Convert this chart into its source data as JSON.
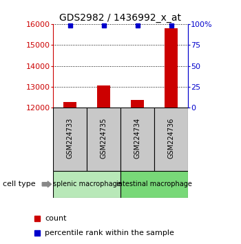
{
  "title": "GDS2982 / 1436992_x_at",
  "samples": [
    "GSM224733",
    "GSM224735",
    "GSM224734",
    "GSM224736"
  ],
  "counts": [
    12250,
    13050,
    12350,
    15800
  ],
  "percentile_ranks": [
    99,
    99,
    99,
    99
  ],
  "ylim": [
    12000,
    16000
  ],
  "yticks": [
    12000,
    13000,
    14000,
    15000,
    16000
  ],
  "right_yticks": [
    0,
    25,
    50,
    75,
    100
  ],
  "right_ylim": [
    0,
    100
  ],
  "groups": [
    {
      "label": "splenic macrophage",
      "samples": [
        0,
        1
      ],
      "color": "#b8e8b8"
    },
    {
      "label": "intestinal macrophage",
      "samples": [
        2,
        3
      ],
      "color": "#78d878"
    }
  ],
  "bar_color": "#cc0000",
  "marker_color": "#0000cc",
  "left_axis_color": "#cc0000",
  "right_axis_color": "#0000cc",
  "sample_box_color": "#c8c8c8",
  "cell_type_label": "cell type",
  "legend_count": "count",
  "legend_percentile": "percentile rank within the sample",
  "bar_width": 0.4
}
